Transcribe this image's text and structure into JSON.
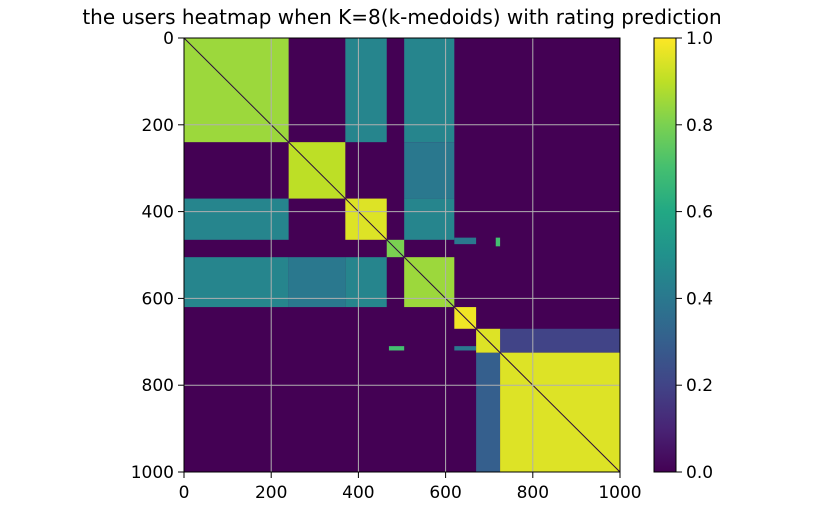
{
  "chart_data": {
    "type": "heatmap",
    "title": "the users heatmap when K=8(k-medoids) with rating prediction",
    "xlabel": "",
    "ylabel": "",
    "n": 1000,
    "xlim": [
      0,
      1000
    ],
    "ylim": [
      1000,
      0
    ],
    "xticks": [
      0,
      200,
      400,
      600,
      800,
      1000
    ],
    "yticks": [
      0,
      200,
      400,
      600,
      800,
      1000
    ],
    "grid": true,
    "colormap": "viridis",
    "colorbar": {
      "min": 0.0,
      "max": 1.0,
      "ticks": [
        "0.0",
        "0.2",
        "0.4",
        "0.6",
        "0.8",
        "1.0"
      ]
    },
    "clusters": [
      {
        "start": 0,
        "end": 240,
        "value": 0.85
      },
      {
        "start": 240,
        "end": 370,
        "value": 0.9
      },
      {
        "start": 370,
        "end": 465,
        "value": 0.95
      },
      {
        "start": 465,
        "end": 505,
        "value": 0.8
      },
      {
        "start": 505,
        "end": 620,
        "value": 0.85
      },
      {
        "start": 620,
        "end": 670,
        "value": 0.98
      },
      {
        "start": 670,
        "end": 725,
        "value": 0.95
      },
      {
        "start": 725,
        "end": 1000,
        "value": 0.95
      }
    ],
    "cross_blocks": [
      {
        "rows": [
          0,
          240
        ],
        "cols": [
          370,
          465
        ],
        "value": 0.45
      },
      {
        "rows": [
          0,
          240
        ],
        "cols": [
          505,
          620
        ],
        "value": 0.45
      },
      {
        "rows": [
          370,
          465
        ],
        "cols": [
          0,
          240
        ],
        "value": 0.45
      },
      {
        "rows": [
          370,
          465
        ],
        "cols": [
          505,
          620
        ],
        "value": 0.45
      },
      {
        "rows": [
          505,
          620
        ],
        "cols": [
          0,
          240
        ],
        "value": 0.45
      },
      {
        "rows": [
          505,
          620
        ],
        "cols": [
          240,
          370
        ],
        "value": 0.4
      },
      {
        "rows": [
          505,
          620
        ],
        "cols": [
          370,
          465
        ],
        "value": 0.45
      },
      {
        "rows": [
          240,
          370
        ],
        "cols": [
          505,
          620
        ],
        "value": 0.4
      },
      {
        "rows": [
          670,
          725
        ],
        "cols": [
          725,
          1000
        ],
        "value": 0.2
      },
      {
        "rows": [
          725,
          1000
        ],
        "cols": [
          670,
          725
        ],
        "value": 0.3
      },
      {
        "rows": [
          460,
          475
        ],
        "cols": [
          620,
          670
        ],
        "value": 0.4
      },
      {
        "rows": [
          460,
          480
        ],
        "cols": [
          715,
          725
        ],
        "value": 0.7
      },
      {
        "rows": [
          710,
          720
        ],
        "cols": [
          470,
          505
        ],
        "value": 0.7
      },
      {
        "rows": [
          710,
          720
        ],
        "cols": [
          620,
          670
        ],
        "value": 0.4
      }
    ]
  }
}
